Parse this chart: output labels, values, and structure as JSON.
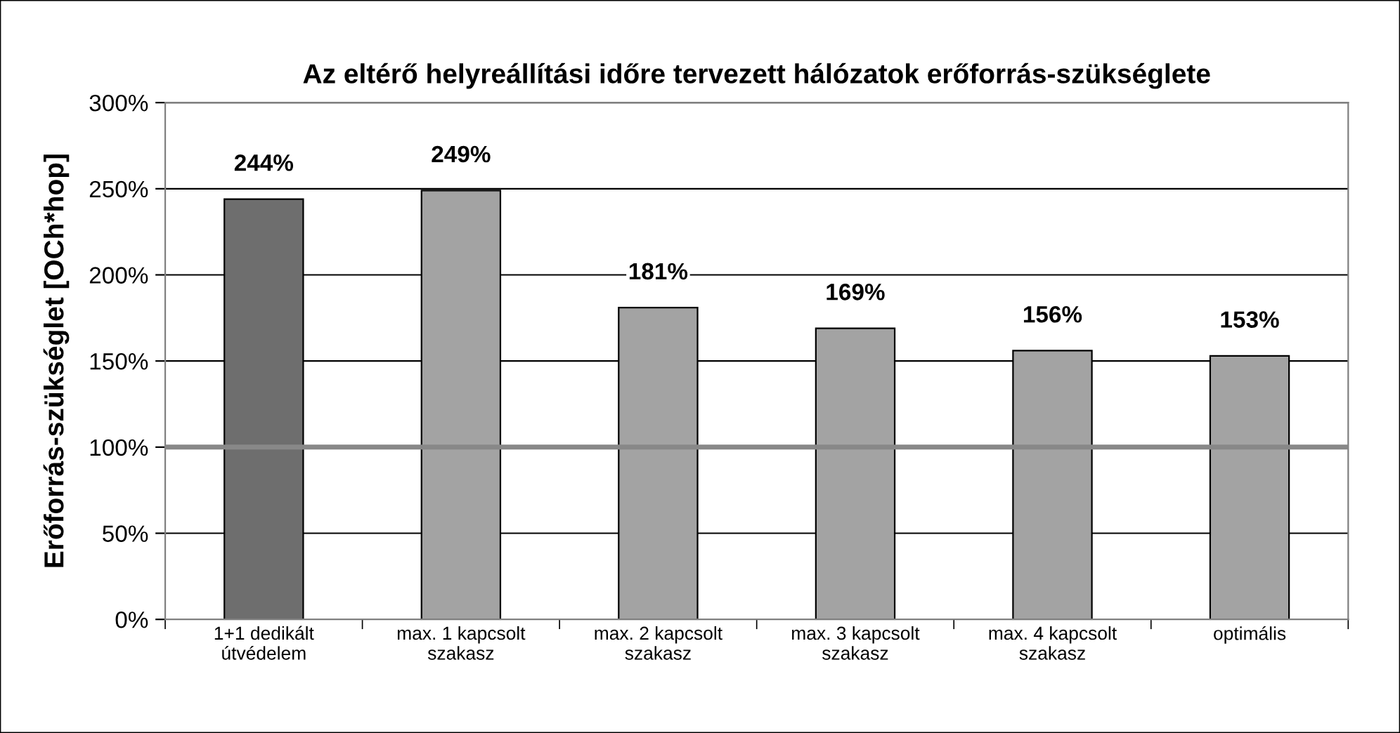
{
  "chart_data": {
    "type": "bar",
    "title": "Az eltérő helyreállítási időre tervezett hálózatok erőforrás-szükséglete",
    "ylabel": "Erőforrás-szükséglet [OCh*hop]",
    "categories": [
      "1+1 dedikált\nútvédelem",
      "max. 1 kapcsolt\nszakasz",
      "max. 2 kapcsolt\nszakasz",
      "max. 3 kapcsolt\nszakasz",
      "max. 4 kapcsolt\nszakasz",
      "optimális"
    ],
    "values": [
      244,
      249,
      181,
      169,
      156,
      153
    ],
    "colors": [
      "#6e6e6e",
      "#a3a3a3",
      "#a3a3a3",
      "#a3a3a3",
      "#a3a3a3",
      "#a3a3a3"
    ],
    "value_labels": [
      "244%",
      "249%",
      "181%",
      "169%",
      "156%",
      "153%"
    ],
    "ylim": [
      0,
      300
    ],
    "yticks": [
      {
        "value": 0,
        "label": "0%"
      },
      {
        "value": 50,
        "label": "50%"
      },
      {
        "value": 100,
        "label": "100%"
      },
      {
        "value": 150,
        "label": "150%"
      },
      {
        "value": 200,
        "label": "200%"
      },
      {
        "value": 250,
        "label": "250%"
      },
      {
        "value": 300,
        "label": "300%"
      }
    ],
    "grid": "y",
    "legend": false,
    "ref_lines": [
      {
        "axis": "y",
        "value": 100,
        "label": null,
        "color": "#888888"
      }
    ]
  }
}
